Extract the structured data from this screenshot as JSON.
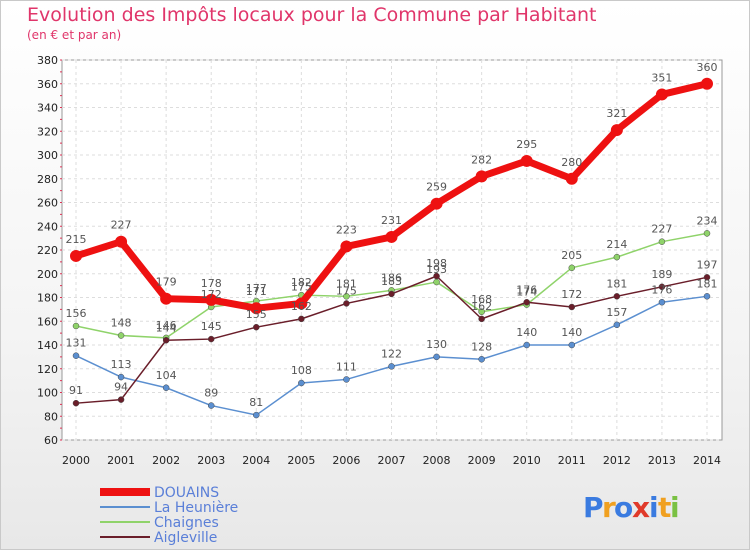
{
  "header": {
    "title": "Evolution des Impôts locaux pour la Commune par Habitant",
    "subtitle": "(en € et par an)"
  },
  "logo": {
    "text": "Proxiti",
    "letters": [
      "P",
      "r",
      "o",
      "x",
      "i",
      "t",
      "i"
    ],
    "colors": [
      "#3a7be0",
      "#f0a020",
      "#3a7be0",
      "#e03a2a",
      "#3a7be0",
      "#f0a020",
      "#7ac143"
    ]
  },
  "chart_data": {
    "type": "line",
    "title": "Evolution des Impôts locaux pour la Commune par Habitant",
    "subtitle": "(en € et par an)",
    "xlabel": "",
    "ylabel": "",
    "ylim": [
      60,
      380
    ],
    "yticks": [
      60,
      80,
      100,
      120,
      140,
      160,
      180,
      200,
      220,
      240,
      260,
      280,
      300,
      320,
      340,
      360,
      380
    ],
    "grid": true,
    "legend_position": "bottom-left",
    "categories": [
      "2000",
      "2001",
      "2002",
      "2003",
      "2004",
      "2005",
      "2006",
      "2007",
      "2008",
      "2009",
      "2010",
      "2011",
      "2012",
      "2013",
      "2014"
    ],
    "series": [
      {
        "name": "DOUAINS",
        "color": "#ee1111",
        "emphasis": true,
        "values": [
          215,
          227,
          179,
          178,
          171,
          175,
          223,
          231,
          259,
          282,
          295,
          280,
          321,
          351,
          360
        ],
        "labels": [
          "215",
          "227",
          "179",
          "178",
          "171",
          "175",
          "223",
          "231",
          "259",
          "282",
          "295",
          "280",
          "321",
          "351",
          "360"
        ]
      },
      {
        "name": "La Heunière",
        "color": "#5b8fd0",
        "emphasis": false,
        "values": [
          131,
          113,
          104,
          89,
          81,
          108,
          111,
          122,
          130,
          128,
          140,
          140,
          157,
          176,
          181
        ],
        "labels": [
          "131",
          "113",
          "104",
          "89",
          "81",
          "108",
          "111",
          "122",
          "130",
          "128",
          "140",
          "140",
          "157",
          "176",
          "181"
        ]
      },
      {
        "name": "Chaignes",
        "color": "#8fd36a",
        "emphasis": false,
        "values": [
          156,
          148,
          146,
          172,
          177,
          182,
          181,
          186,
          193,
          168,
          174,
          205,
          214,
          227,
          234
        ],
        "labels": [
          "156",
          "148",
          "146",
          "172",
          "177",
          "182",
          "181",
          "186",
          "193",
          "168",
          "174",
          "205",
          "214",
          "227",
          "234"
        ]
      },
      {
        "name": "Aigleville",
        "color": "#6a1e2a",
        "emphasis": false,
        "values": [
          91,
          94,
          144,
          145,
          155,
          162,
          175,
          183,
          198,
          162,
          176,
          172,
          181,
          189,
          197
        ],
        "labels": [
          "91",
          "94",
          "144",
          "145",
          "155",
          "162",
          "175",
          "183",
          "198",
          "162",
          "176",
          "172",
          "181",
          "189",
          "197"
        ]
      }
    ]
  }
}
